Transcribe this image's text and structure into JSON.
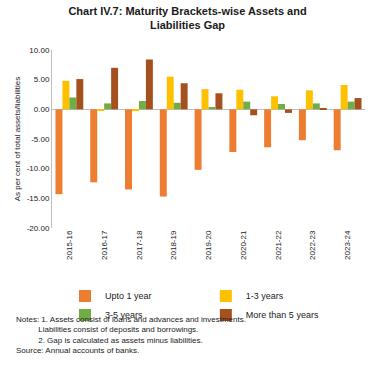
{
  "chart_data": {
    "type": "bar",
    "title": "Chart IV.7: Maturity Brackets-wise Assets and Liabilities Gap",
    "y_label": "As per cent of total assets/liabilities",
    "categories": [
      "2015-16",
      "2016-17",
      "2017-18",
      "2018-19",
      "2019-20",
      "2020-21",
      "2021-22",
      "2022-23",
      "2023-24"
    ],
    "series": [
      {
        "name": "Upto 1 year",
        "color": "#ED7D31",
        "values": [
          -14.3,
          -12.3,
          -13.5,
          -14.7,
          -10.2,
          -7.2,
          -6.4,
          -5.2,
          -6.9
        ]
      },
      {
        "name": "1-3 years",
        "color": "#FFC000",
        "values": [
          4.8,
          -0.2,
          -0.3,
          5.5,
          3.4,
          3.3,
          2.2,
          3.2,
          4.1
        ]
      },
      {
        "name": "3-5 years",
        "color": "#70AD47",
        "values": [
          2.0,
          1.0,
          1.4,
          1.1,
          0.4,
          1.3,
          0.9,
          1.0,
          1.3
        ]
      },
      {
        "name": "More than 5 years",
        "color": "#A5511E",
        "values": [
          5.1,
          7.0,
          8.4,
          4.4,
          2.7,
          -1.0,
          -0.6,
          0.1,
          1.9
        ]
      }
    ],
    "ylim": [
      -20,
      10
    ],
    "yticks": [
      {
        "value": -20,
        "label": "-20.00"
      },
      {
        "value": -15,
        "label": "-15.00"
      },
      {
        "value": -10,
        "label": "-10.00"
      },
      {
        "value": -5,
        "label": "-5.00"
      },
      {
        "value": 0,
        "label": "0.00"
      },
      {
        "value": 5,
        "label": "5.00"
      },
      {
        "value": 10,
        "label": "10.00"
      }
    ],
    "grid": false,
    "legend": "bottom",
    "notes": [
      "Notes: 1. Assets consist of loans and advances and investments.",
      "Liabilities consist of deposits and borrowings.",
      "2. Gap is calculated as assets minus liabilities."
    ],
    "source": "Source: Annual accounts of banks."
  }
}
